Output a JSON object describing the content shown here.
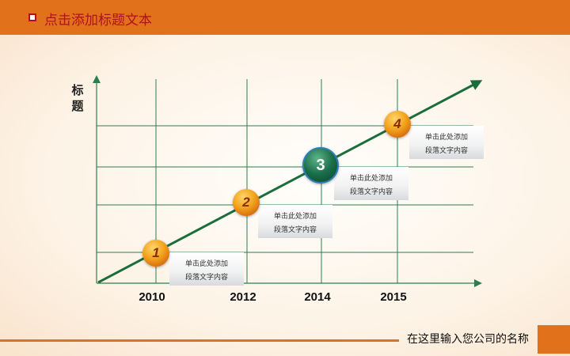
{
  "header": {
    "title": "点击添加标题文本"
  },
  "y_axis_label": "标题",
  "footer": {
    "text": "在这里输入您公司的名称"
  },
  "colors": {
    "accent": "#e2711c",
    "title_text": "#b01020",
    "grid": "#2e7d4f"
  },
  "milestones": [
    {
      "number": "1",
      "line1": "单击此处添加",
      "line2": "段落文字内容"
    },
    {
      "number": "2",
      "line1": "单击此处添加",
      "line2": "段落文字内容"
    },
    {
      "number": "3",
      "line1": "单击此处添加",
      "line2": "段落文字内容"
    },
    {
      "number": "4",
      "line1": "单击此处添加",
      "line2": "段落文字内容"
    }
  ],
  "chart_data": {
    "type": "line",
    "x": [
      "2010",
      "2012",
      "2014",
      "2015"
    ],
    "series": [
      {
        "values": [
          1,
          2,
          3,
          4
        ]
      }
    ],
    "xlabel": "",
    "ylabel": "标题",
    "grid": true
  }
}
